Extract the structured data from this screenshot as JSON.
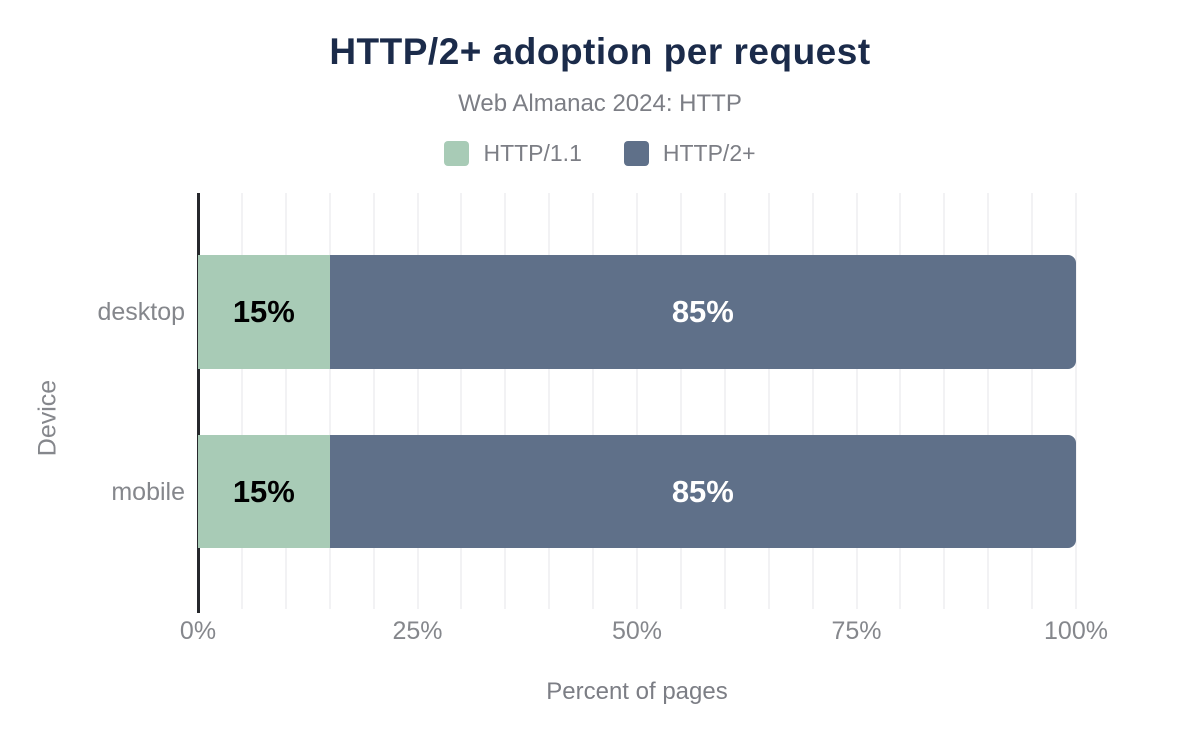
{
  "chart_data": {
    "type": "bar",
    "orientation": "horizontal",
    "stacked": true,
    "title": "HTTP/2+ adoption per request",
    "subtitle": "Web Almanac 2024: HTTP",
    "categories": [
      "desktop",
      "mobile"
    ],
    "series": [
      {
        "name": "HTTP/1.1",
        "color": "#a8cbb6",
        "text_color": "#000000",
        "values": [
          15,
          15
        ],
        "labels": [
          "15%",
          "15%"
        ]
      },
      {
        "name": "HTTP/2+",
        "color": "#5f7089",
        "text_color": "#ffffff",
        "values": [
          85,
          85
        ],
        "labels": [
          "85%",
          "85%"
        ]
      }
    ],
    "xlabel": "Percent of pages",
    "ylabel": "Device",
    "xlim": [
      0,
      100
    ],
    "x_tick_values": [
      0,
      25,
      50,
      75,
      100
    ],
    "x_tick_labels": [
      "0%",
      "25%",
      "50%",
      "75%",
      "100%"
    ],
    "grid": true,
    "grid_step": 5,
    "legend_position": "top"
  },
  "colors": {
    "background": "#ffffff",
    "title": "#1b2b4a",
    "subtitle": "#7c7e85",
    "axis_text": "#85878c",
    "gridline": "#f2f2f4",
    "axis_line": "#26282c"
  }
}
